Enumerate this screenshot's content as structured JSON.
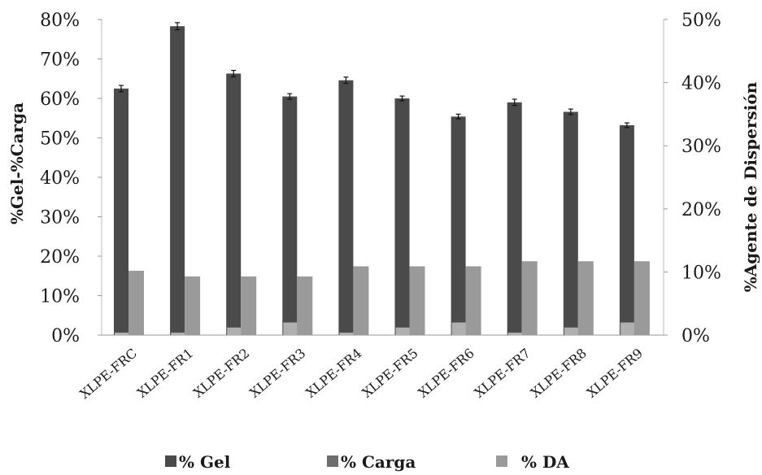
{
  "chart_data": {
    "type": "bar",
    "categories": [
      "XLPE-FRC",
      "XLPE-FR1",
      "XLPE-FR2",
      "XLPE-FR3",
      "XLPE-FR4",
      "XLPE-FR5",
      "XLPE-FR6",
      "XLPE-FR7",
      "XLPE-FR8",
      "XLPE-FR9"
    ],
    "series": [
      {
        "name": "% Gel",
        "axis": "left",
        "values": [
          62.5,
          78.3,
          66.3,
          60.5,
          64.6,
          60.0,
          55.4,
          59.0,
          56.6,
          53.2
        ],
        "error": [
          0.8,
          0.9,
          0.8,
          0.7,
          0.8,
          0.6,
          0.6,
          0.8,
          0.7,
          0.6
        ],
        "color": "#4a4a4a"
      },
      {
        "name": "% Carga",
        "axis": "left",
        "values": [
          0,
          0,
          0,
          0,
          0,
          0,
          0,
          0,
          0,
          0
        ],
        "color": "#6e6e6e"
      },
      {
        "name": "% DA",
        "axis": "right",
        "values": [
          10.2,
          9.3,
          9.3,
          9.3,
          10.9,
          10.9,
          10.9,
          11.7,
          11.7,
          11.7
        ],
        "color": "#9a9a9a"
      },
      {
        "name": "% DA",
        "axis": "right",
        "values": [
          0.4,
          0.4,
          1.2,
          2.0,
          0.4,
          1.2,
          2.0,
          0.4,
          1.2,
          2.0
        ],
        "color": "#b0b0b0"
      }
    ],
    "xlabel": "",
    "ylabel_left": "%Gel-%Carga",
    "ylabel_right": "%Agente de Dispersión",
    "ylim_left": [
      0,
      80
    ],
    "yticks_left": [
      "0%",
      "10%",
      "20%",
      "30%",
      "40%",
      "50%",
      "60%",
      "70%",
      "80%"
    ],
    "ylim_right": [
      0,
      50
    ],
    "yticks_right": [
      "0%",
      "10%",
      "20%",
      "30%",
      "40%",
      "50%"
    ],
    "grid": false,
    "legend_position": "bottom",
    "legend": [
      "% Gel",
      "% Carga",
      "% DA"
    ]
  }
}
